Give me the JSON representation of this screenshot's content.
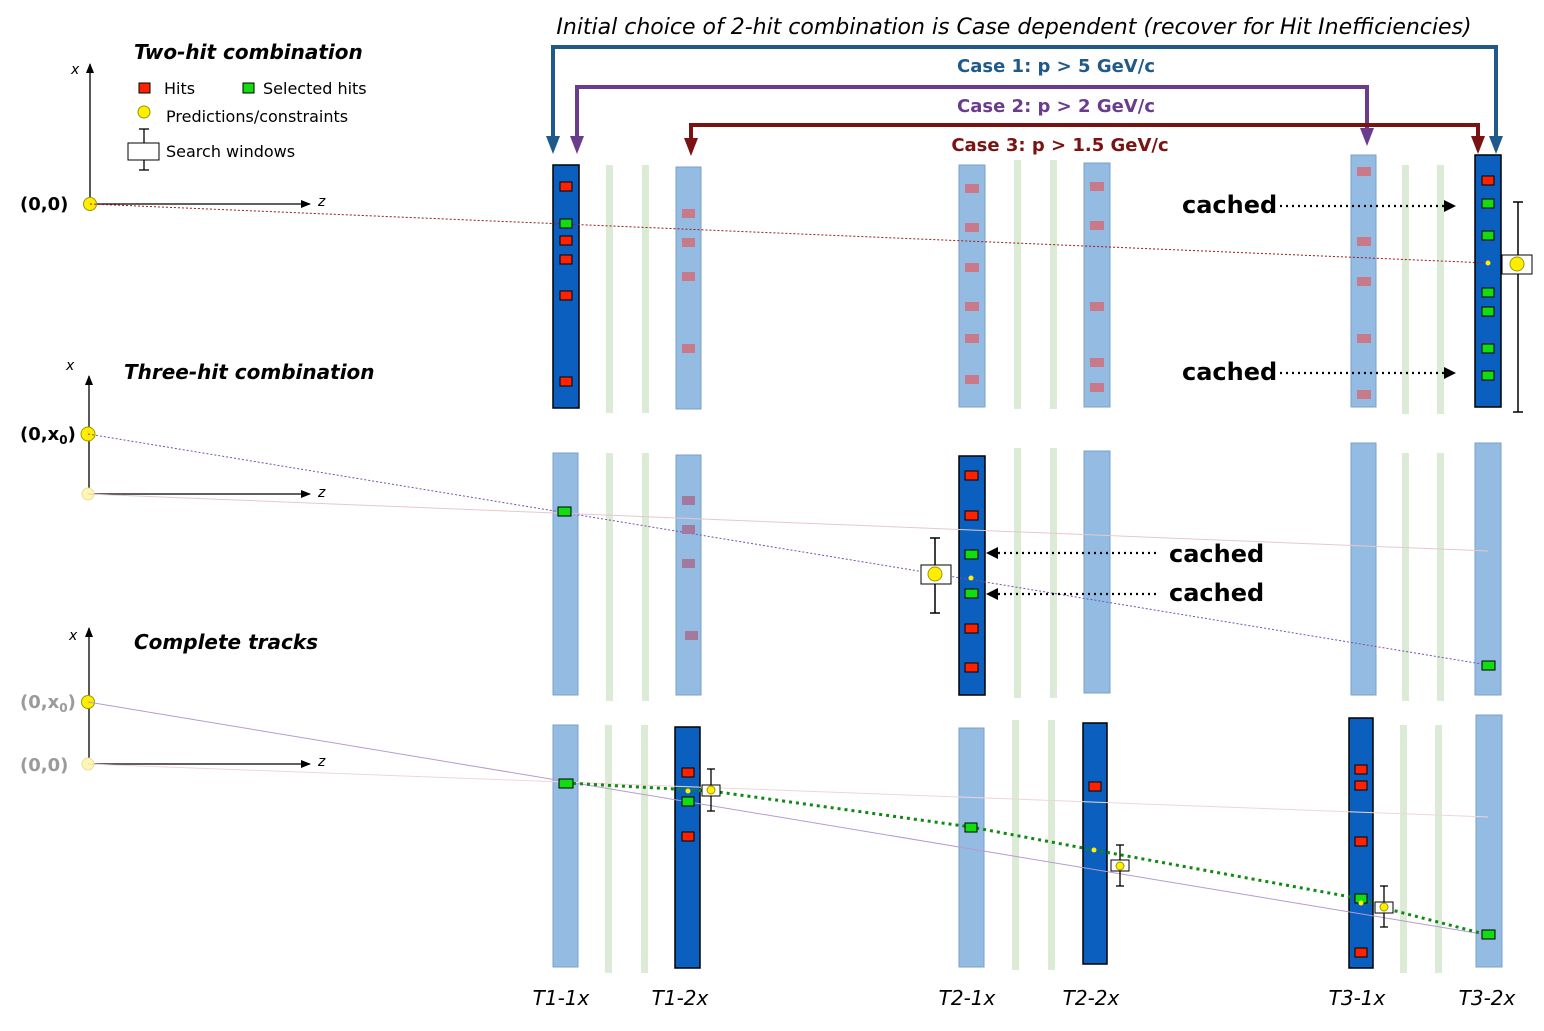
{
  "title": "Initial choice of 2-hit combination is Case dependent (recover for Hit Inefficiencies)",
  "sections": {
    "two_hit": "Two-hit combination",
    "three_hit": "Three-hit combination",
    "complete": "Complete tracks"
  },
  "legend": {
    "hits": "Hits",
    "selected_hits": "Selected hits",
    "predictions": "Predictions/constraints",
    "search_windows": "Search windows"
  },
  "axes": {
    "x": "x",
    "z": "z"
  },
  "origins": {
    "p1": "(0,0)",
    "p2_main": "(0,x",
    "p2_sub": "0",
    "p2_close": ")",
    "p3a_main": "(0,x",
    "p3a_sub": "0",
    "p3a_close": ")",
    "p3b": "(0,0)"
  },
  "cases": {
    "case1": "Case 1: p > 5 GeV/c",
    "case2": "Case 2: p > 2 GeV/c",
    "case3": "Case 3: p > 1.5 GeV/c"
  },
  "cached": "cached",
  "layers": [
    "T1-1x",
    "T1-2x",
    "T2-1x",
    "T2-2x",
    "T3-1x",
    "T3-2x"
  ],
  "colors": {
    "case1": "#1f5a8a",
    "case2": "#6a3d8c",
    "case3": "#7a1212",
    "active_layer": "#0a5fbf",
    "inactive_layer": "#94bce3",
    "uv_layer": "#dcebd5",
    "hit": "#ff2200",
    "selected_hit": "#11dd11",
    "prediction": "#ffee00"
  }
}
